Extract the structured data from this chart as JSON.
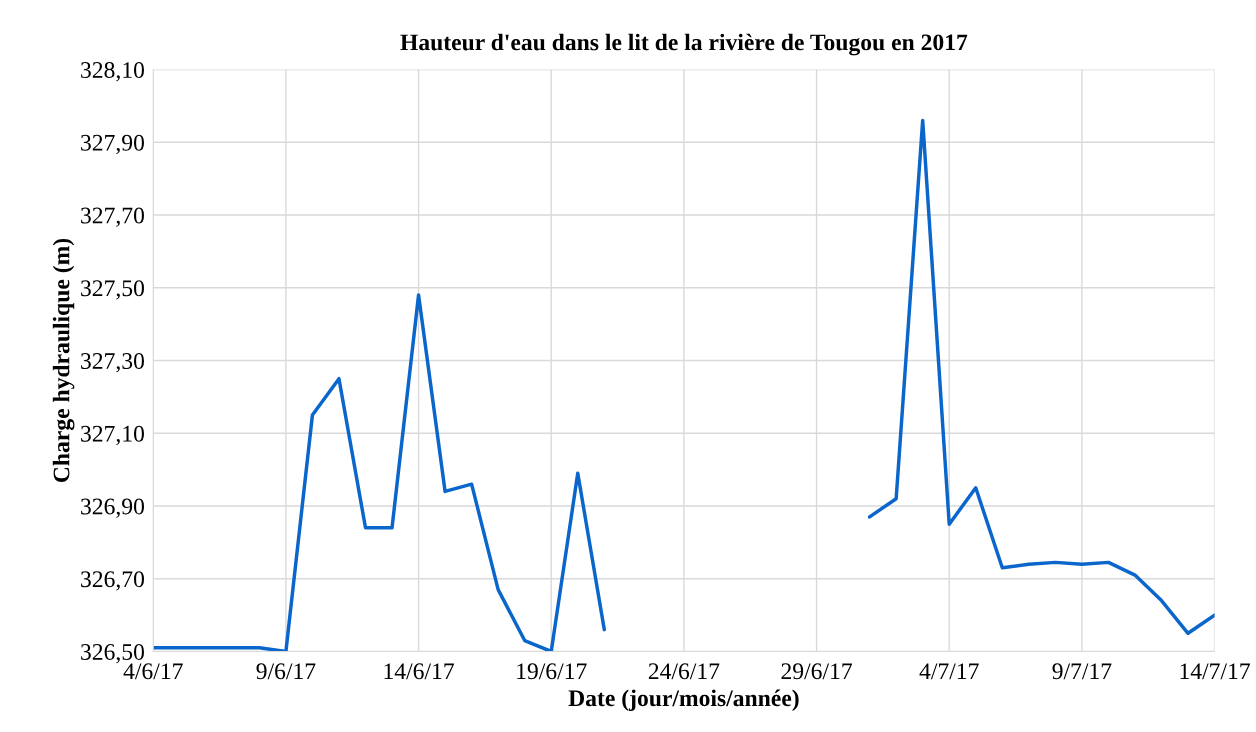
{
  "chart_data": {
    "type": "line",
    "title": "Hauteur d'eau dans le lit de la rivière de Tougou en 2017",
    "xlabel": "Date (jour/mois/année)",
    "ylabel": "Charge hydraulique (m)",
    "series": [
      {
        "color": "#0b66cc",
        "x": [
          "2017-06-04",
          "2017-06-05",
          "2017-06-06",
          "2017-06-07",
          "2017-06-08",
          "2017-06-09",
          "2017-06-10",
          "2017-06-11",
          "2017-06-12",
          "2017-06-13",
          "2017-06-14",
          "2017-06-15",
          "2017-06-16",
          "2017-06-17",
          "2017-06-18",
          "2017-06-19",
          "2017-06-20",
          "2017-06-21"
        ],
        "values": [
          326.51,
          326.51,
          326.51,
          326.51,
          326.51,
          326.5,
          327.15,
          327.25,
          326.84,
          326.84,
          327.48,
          326.94,
          326.96,
          326.67,
          326.53,
          326.5,
          326.99,
          326.56
        ]
      },
      {
        "color": "#0b66cc",
        "x": [
          "2017-07-01",
          "2017-07-02",
          "2017-07-03",
          "2017-07-04",
          "2017-07-05",
          "2017-07-06",
          "2017-07-07",
          "2017-07-08",
          "2017-07-09",
          "2017-07-10",
          "2017-07-11",
          "2017-07-12",
          "2017-07-13",
          "2017-07-14"
        ],
        "values": [
          326.87,
          326.92,
          327.96,
          326.85,
          326.95,
          326.73,
          326.74,
          326.745,
          326.74,
          326.745,
          326.71,
          326.64,
          326.55,
          326.6
        ]
      }
    ],
    "xlim": [
      "2017-06-04",
      "2017-07-14"
    ],
    "xticks": [
      {
        "value": "2017-06-04",
        "label": "4/6/17"
      },
      {
        "value": "2017-06-09",
        "label": "9/6/17"
      },
      {
        "value": "2017-06-14",
        "label": "14/6/17"
      },
      {
        "value": "2017-06-19",
        "label": "19/6/17"
      },
      {
        "value": "2017-06-24",
        "label": "24/6/17"
      },
      {
        "value": "2017-06-29",
        "label": "29/6/17"
      },
      {
        "value": "2017-07-04",
        "label": "4/7/17"
      },
      {
        "value": "2017-07-09",
        "label": "9/7/17"
      },
      {
        "value": "2017-07-14",
        "label": "14/7/17"
      }
    ],
    "ylim": [
      326.5,
      328.1
    ],
    "yticks": [
      {
        "value": 326.5,
        "label": "326,50"
      },
      {
        "value": 326.7,
        "label": "326,70"
      },
      {
        "value": 326.9,
        "label": "326,90"
      },
      {
        "value": 327.1,
        "label": "327,10"
      },
      {
        "value": 327.3,
        "label": "327,30"
      },
      {
        "value": 327.5,
        "label": "327,50"
      },
      {
        "value": 327.7,
        "label": "327,70"
      },
      {
        "value": 327.9,
        "label": "327,90"
      },
      {
        "value": 328.1,
        "label": "328,10"
      }
    ],
    "grid": true,
    "line_style": "solid"
  }
}
